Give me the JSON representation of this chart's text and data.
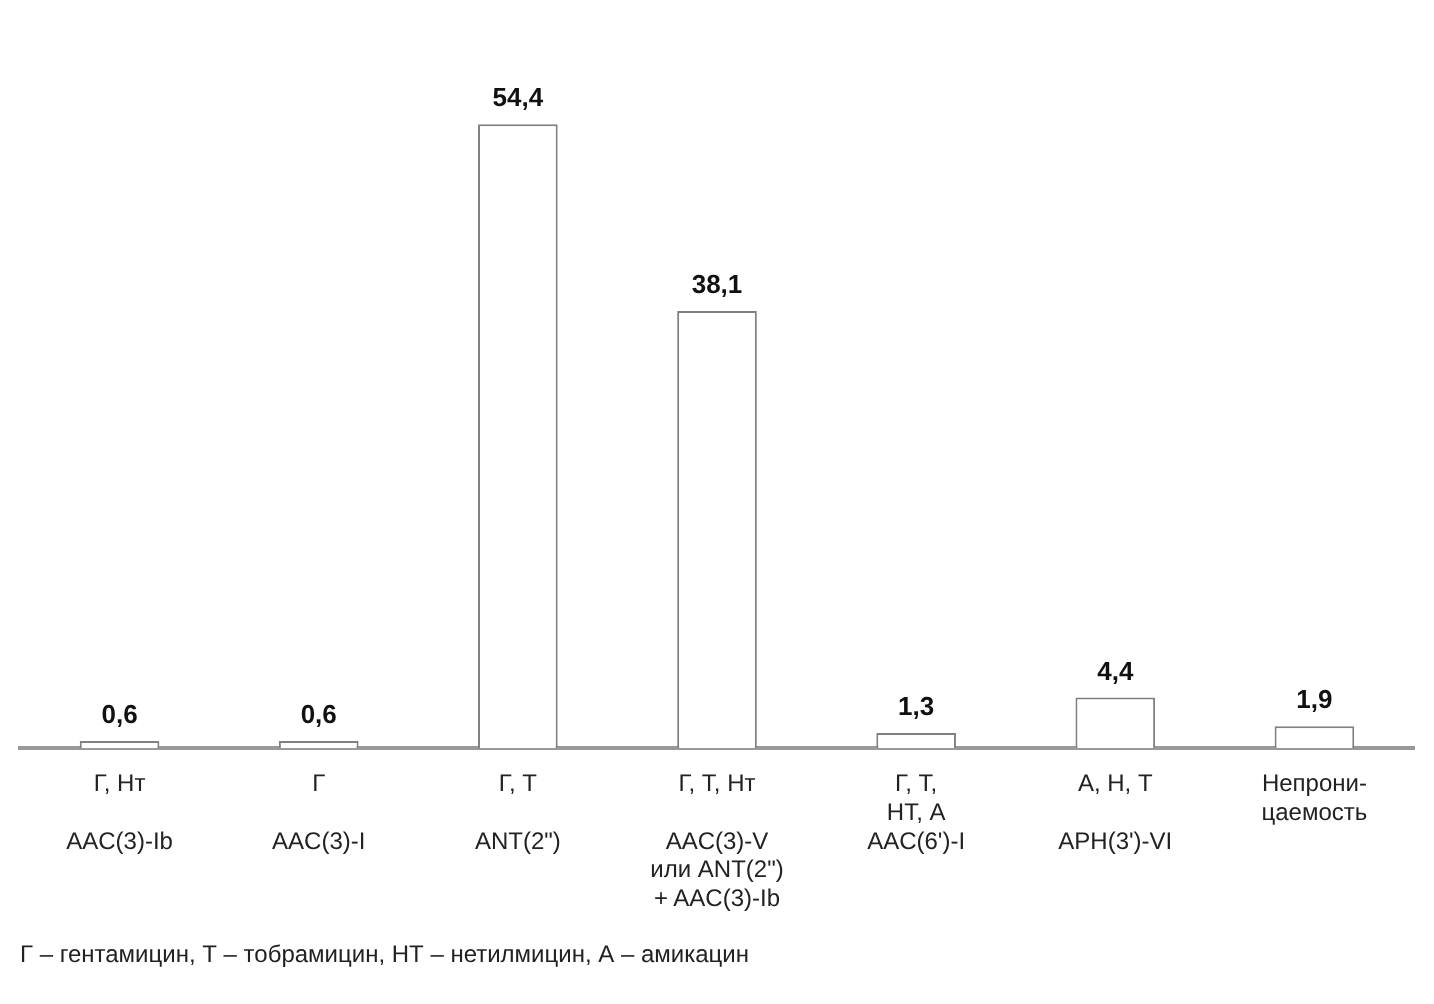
{
  "chart_data": {
    "type": "bar",
    "categories": [
      "Г, Нт\n\nAAC(3)-Ib",
      "Г\n\nAAC(3)-I",
      "Г, Т\n\nANT(2\")",
      "Г, Т, Нт\n\nAAC(3)-V\nили ANT(2\")\n+ AAC(3)-Ib",
      "Г, Т,\nНТ, А\nAAC(6')-I",
      "А, Н, Т\n\nAPH(3')-VI",
      "Непрони-\nцаемость"
    ],
    "values": [
      0.6,
      0.6,
      54.4,
      38.1,
      1.3,
      4.4,
      1.9
    ],
    "color": "#ffffff",
    "value_labels": [
      "0,6",
      "0,6",
      "54,4",
      "38,1",
      "1,3",
      "4,4",
      "1,9"
    ],
    "annotations": [
      "Г – гентамицин, Т – тобрамицин, НТ – нетилмицин, А – амикацин"
    ]
  }
}
